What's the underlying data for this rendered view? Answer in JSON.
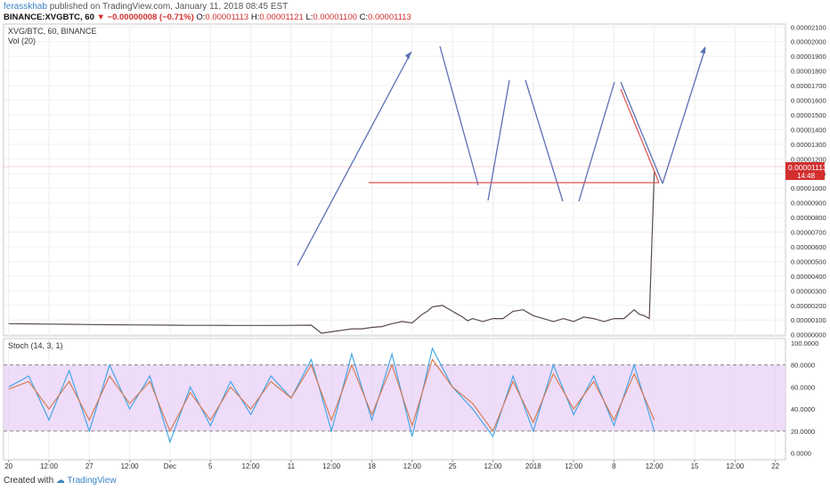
{
  "header": {
    "author": "ferasskhab",
    "published": "published on TradingView.com, January 11, 2018 08:45 EST",
    "symbol": "BINANCE:XVGBTC, 60",
    "change": "▼ −0.00000008 (−0.71%)",
    "o_label": "O:",
    "o_value": "0.00001113",
    "h_label": "H:",
    "h_value": "0.00001121",
    "l_label": "L:",
    "l_value": "0.00001100",
    "c_label": "C:",
    "c_value": "0.00001113"
  },
  "legend": {
    "pane_title": "XVG/BTC, 60, BINANCE",
    "vol_label": "Vol (20)",
    "stoch_label": "Stoch (14, 3, 1)"
  },
  "price_label": {
    "value": "0.00001113",
    "countdown": "14:48"
  },
  "footer": {
    "created_with": "Created with",
    "brand": "TradingView"
  },
  "colors": {
    "price_line": "#5a4a4a",
    "candle_up": "#4caf50",
    "candle_down": "#b23b3b",
    "arrow": "#5b6fb5",
    "support": "#e05050",
    "stoch_k": "#3aa3e3",
    "stoch_d": "#d4764b",
    "stoch_band": "#e7cdf7",
    "vol_up": "#a5d6a7",
    "vol_down": "#ef9a9a",
    "vol_ma": "#f0a050"
  },
  "chart_data": [
    {
      "type": "line",
      "pane": "price",
      "y_axis_ticks": [
        "0.00002100",
        "0.00002000",
        "0.00001900",
        "0.00001800",
        "0.00001700",
        "0.00001600",
        "0.00001500",
        "0.00001400",
        "0.00001300",
        "0.00001200",
        "0.00001100",
        "0.00001000",
        "0.00000900",
        "0.00000800",
        "0.00000700",
        "0.00000600",
        "0.00000500",
        "0.00000400",
        "0.00000300",
        "0.00000200",
        "0.00000100",
        "0.00000000"
      ],
      "ylim": [
        -8e-08,
        2.12e-05
      ],
      "x_tick_labels": [
        "20",
        "12:00",
        "27",
        "12:00",
        "Dec",
        "5",
        "12:00",
        "11",
        "12:00",
        "18",
        "12:00",
        "25",
        "12:00",
        "2018",
        "12:00",
        "8",
        "12:00",
        "15",
        "12:00",
        "22"
      ],
      "x_tick_index": [
        0,
        4,
        8,
        12,
        16,
        20,
        24,
        28,
        32,
        36,
        40,
        44,
        48,
        52,
        56,
        60,
        64,
        68,
        72,
        76
      ],
      "x_range": [
        -0.5,
        77
      ],
      "series": [
        {
          "x": [
            0,
            2,
            4,
            6,
            8,
            10,
            12,
            14,
            16,
            18,
            20,
            22,
            24,
            26,
            28,
            30,
            31,
            32,
            33,
            34,
            35,
            36,
            37,
            38,
            39,
            40,
            40.5,
            41,
            41.5,
            42,
            42.5,
            43,
            43.5,
            44,
            44.5,
            45,
            45.5,
            46,
            47,
            48,
            49,
            50,
            51,
            52,
            53,
            54,
            55,
            56,
            57,
            58,
            59,
            60,
            61,
            62,
            62.5,
            63,
            63.5,
            64
          ],
          "values": [
            7.5e-07,
            7.4e-07,
            7.2e-07,
            7.1e-07,
            6.9e-07,
            6.8e-07,
            6.7e-07,
            6.6e-07,
            6.5e-07,
            6.4e-07,
            6.4e-07,
            6.3e-07,
            6.3e-07,
            6.3e-07,
            6.4e-07,
            6.5e-07,
            1e-07,
            2e-07,
            3e-07,
            4e-07,
            4e-07,
            5e-07,
            5.5e-07,
            7.5e-07,
            9e-07,
            8e-07,
            1.1e-06,
            1.4e-06,
            1.6e-06,
            1.9e-06,
            1.95e-06,
            2e-06,
            1.8e-06,
            1.6e-06,
            1.4e-06,
            1.2e-06,
            9.5e-07,
            1.1e-06,
            9e-07,
            1.1e-06,
            1.1e-06,
            1.6e-06,
            1.7e-06,
            1.3e-06,
            1.1e-06,
            9e-07,
            1.1e-06,
            9e-07,
            1.2e-06,
            1.1e-06,
            9e-07,
            1.1e-06,
            1.1e-06,
            1.7e-06,
            1.4e-06,
            1.3e-06,
            1.1e-06,
            1.113e-05
          ]
        }
      ]
    },
    {
      "type": "line",
      "pane": "stoch",
      "y_axis_ticks": [
        "100.0000",
        "80.0000",
        "60.0000",
        "40.0000",
        "20.0000",
        "0.0000"
      ],
      "ylim": [
        -6,
        104
      ],
      "bands": [
        20,
        80
      ],
      "series": [
        {
          "name": "%K",
          "x": [
            0,
            2,
            4,
            6,
            8,
            10,
            12,
            14,
            16,
            18,
            20,
            22,
            24,
            26,
            28,
            30,
            32,
            34,
            36,
            38,
            40,
            42,
            44,
            46,
            48,
            50,
            52,
            54,
            56,
            58,
            60,
            62,
            64
          ],
          "values": [
            60,
            70,
            30,
            75,
            20,
            80,
            40,
            70,
            10,
            60,
            25,
            65,
            35,
            70,
            50,
            85,
            20,
            90,
            30,
            90,
            15,
            95,
            60,
            40,
            15,
            70,
            20,
            80,
            35,
            70,
            25,
            80,
            20
          ]
        },
        {
          "name": "%D",
          "x": [
            0,
            2,
            4,
            6,
            8,
            10,
            12,
            14,
            16,
            18,
            20,
            22,
            24,
            26,
            28,
            30,
            32,
            34,
            36,
            38,
            40,
            42,
            44,
            46,
            48,
            50,
            52,
            54,
            56,
            58,
            60,
            62,
            64
          ],
          "values": [
            58,
            65,
            40,
            65,
            30,
            70,
            45,
            65,
            20,
            55,
            30,
            60,
            40,
            65,
            50,
            80,
            30,
            80,
            35,
            80,
            25,
            85,
            60,
            45,
            20,
            65,
            28,
            72,
            40,
            65,
            30,
            72,
            30
          ]
        }
      ]
    }
  ]
}
